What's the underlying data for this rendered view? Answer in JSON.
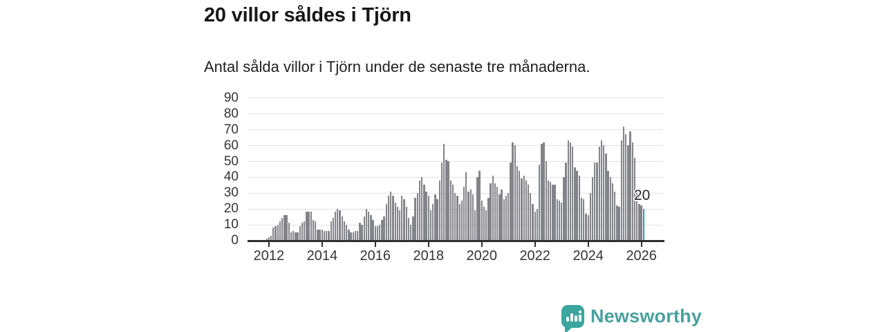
{
  "title": "20 villor såldes i Tjörn",
  "subtitle": "Antal sålda villor i Tjörn under de senaste tre månaderna.",
  "annotation": {
    "label": "20"
  },
  "branding": {
    "name": "Newsworthy",
    "logo_icon": "bar-chart-in-speech-bubble",
    "logo_color": "#3aa69f",
    "text_color": "#49a09c"
  },
  "chart_data": {
    "type": "bar",
    "title": "20 villor såldes i Tjörn",
    "subtitle": "Antal sålda villor i Tjörn under de senaste tre månaderna.",
    "x_unit": "month",
    "x_range_start": "2011-12",
    "x_range_end": "2026-02",
    "x_tick_labels": [
      "2012",
      "2014",
      "2016",
      "2018",
      "2020",
      "2022",
      "2024",
      "2026"
    ],
    "y_tick_labels": [
      "0",
      "10",
      "20",
      "30",
      "40",
      "50",
      "60",
      "70",
      "80",
      "90"
    ],
    "ylim": [
      0,
      90
    ],
    "grid": "horizontal",
    "legend": "none",
    "values": [
      1,
      2,
      3,
      8,
      9,
      10,
      12,
      14,
      16,
      16,
      11,
      5,
      6,
      5,
      5,
      9,
      11,
      12,
      18,
      18,
      18,
      13,
      12,
      7,
      7,
      7,
      6,
      6,
      6,
      12,
      14,
      18,
      20,
      19,
      15,
      12,
      10,
      7,
      5,
      5,
      6,
      6,
      11,
      10,
      15,
      20,
      18,
      16,
      13,
      9,
      9,
      10,
      13,
      15,
      23,
      28,
      31,
      28,
      24,
      21,
      19,
      28,
      26,
      21,
      14,
      10,
      15,
      27,
      30,
      38,
      40,
      35,
      31,
      28,
      19,
      23,
      29,
      26,
      38,
      49,
      61,
      51,
      50,
      38,
      35,
      30,
      28,
      23,
      25,
      34,
      43,
      31,
      32,
      29,
      19,
      40,
      44,
      25,
      21,
      19,
      27,
      36,
      41,
      36,
      34,
      29,
      32,
      26,
      28,
      30,
      49,
      62,
      60,
      47,
      44,
      39,
      41,
      38,
      35,
      30,
      23,
      18,
      20,
      48,
      61,
      62,
      50,
      38,
      37,
      35,
      35,
      26,
      25,
      24,
      40,
      49,
      63,
      62,
      59,
      46,
      44,
      41,
      27,
      26,
      17,
      16,
      30,
      40,
      49,
      49,
      59,
      63,
      60,
      55,
      44,
      40,
      36,
      31,
      22,
      21,
      63,
      72,
      67,
      60,
      69,
      62,
      52,
      32,
      23,
      22,
      20
    ],
    "highlight_last_bar": true,
    "highlight_value": 20,
    "highlight_label": "20",
    "colors": {
      "bar": "#83838a",
      "highlight": "#1ba69e"
    }
  }
}
